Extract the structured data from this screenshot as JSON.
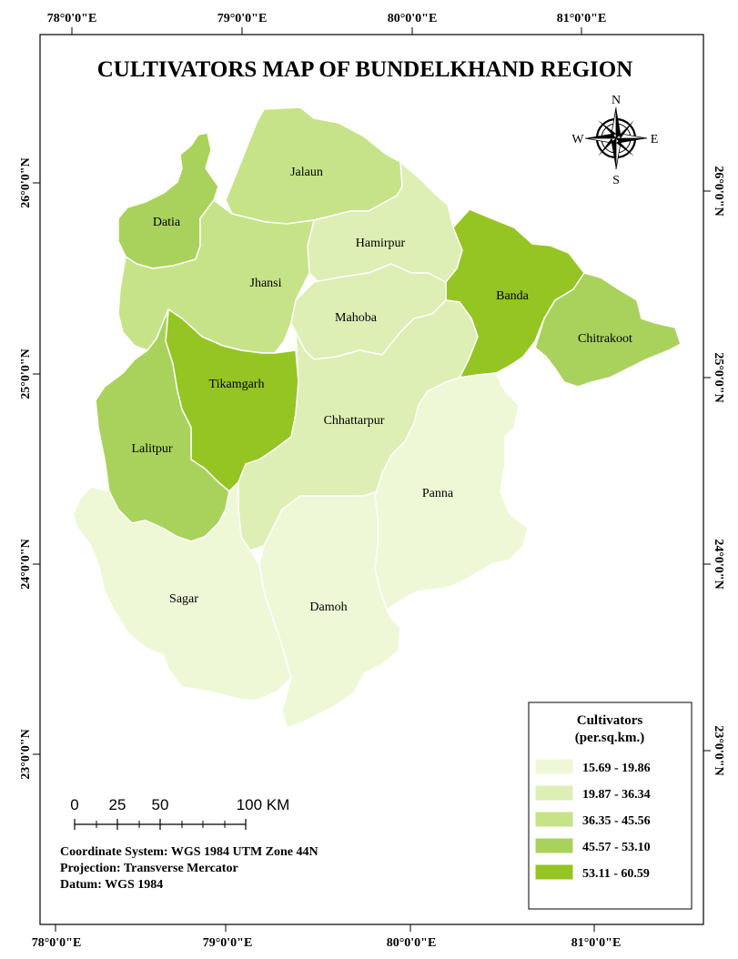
{
  "title": "CULTIVATORS  MAP OF BUNDELKHAND REGION",
  "top_longitudes": [
    "78°0'0\"E",
    "79°0'0\"E",
    "80°0'0\"E",
    "81°0'0\"E"
  ],
  "bottom_longitudes": [
    "78°0'0\"E",
    "79°0'0\"E",
    "80°0'0\"E",
    "81°0'0\"E"
  ],
  "left_latitudes": [
    "26°0'0\"N",
    "25°0'0\"N",
    "24°0'0\"N",
    "23°0'0\"N"
  ],
  "right_latitudes": [
    "26°0'0\"N",
    "25°0'0\"N",
    "24°0'0\"N",
    "23°0'0\"N"
  ],
  "compass": {
    "n": "N",
    "s": "S",
    "e": "E",
    "w": "W"
  },
  "colors": {
    "class1": "#eef8d6",
    "class2": "#ddefb4",
    "class3": "#c6e388",
    "class4": "#a9d25c",
    "class5": "#95c522",
    "border": "#ffffff"
  },
  "districts": [
    {
      "name": "Jalaun",
      "class": 3
    },
    {
      "name": "Datia",
      "class": 4
    },
    {
      "name": "Hamirpur",
      "class": 2
    },
    {
      "name": "Jhansi",
      "class": 3
    },
    {
      "name": "Banda",
      "class": 5
    },
    {
      "name": "Mahoba",
      "class": 2
    },
    {
      "name": "Chitrakoot",
      "class": 4
    },
    {
      "name": "Tikamgarh",
      "class": 5
    },
    {
      "name": "Chhattarpur",
      "class": 2
    },
    {
      "name": "Lalitpur",
      "class": 4
    },
    {
      "name": "Panna",
      "class": 1
    },
    {
      "name": "Sagar",
      "class": 1
    },
    {
      "name": "Damoh",
      "class": 1
    }
  ],
  "legend": {
    "title_line1": "Cultivators",
    "title_line2": "(per.sq.km.)",
    "items": [
      {
        "label": "15.69 - 19.86",
        "color": "#eef8d6"
      },
      {
        "label": "19.87 - 36.34",
        "color": "#ddefb4"
      },
      {
        "label": "36.35 - 45.56",
        "color": "#c6e388"
      },
      {
        "label": "45.57 - 53.10",
        "color": "#a9d25c"
      },
      {
        "label": "53.11 - 60.59",
        "color": "#95c522"
      }
    ]
  },
  "scale_bar": {
    "labels": [
      "0",
      "25",
      "50",
      "100 KM"
    ]
  },
  "info": {
    "line1": "Coordinate System: WGS 1984 UTM Zone 44N",
    "line2": "Projection: Transverse Mercator",
    "line3": "Datum: WGS 1984"
  }
}
